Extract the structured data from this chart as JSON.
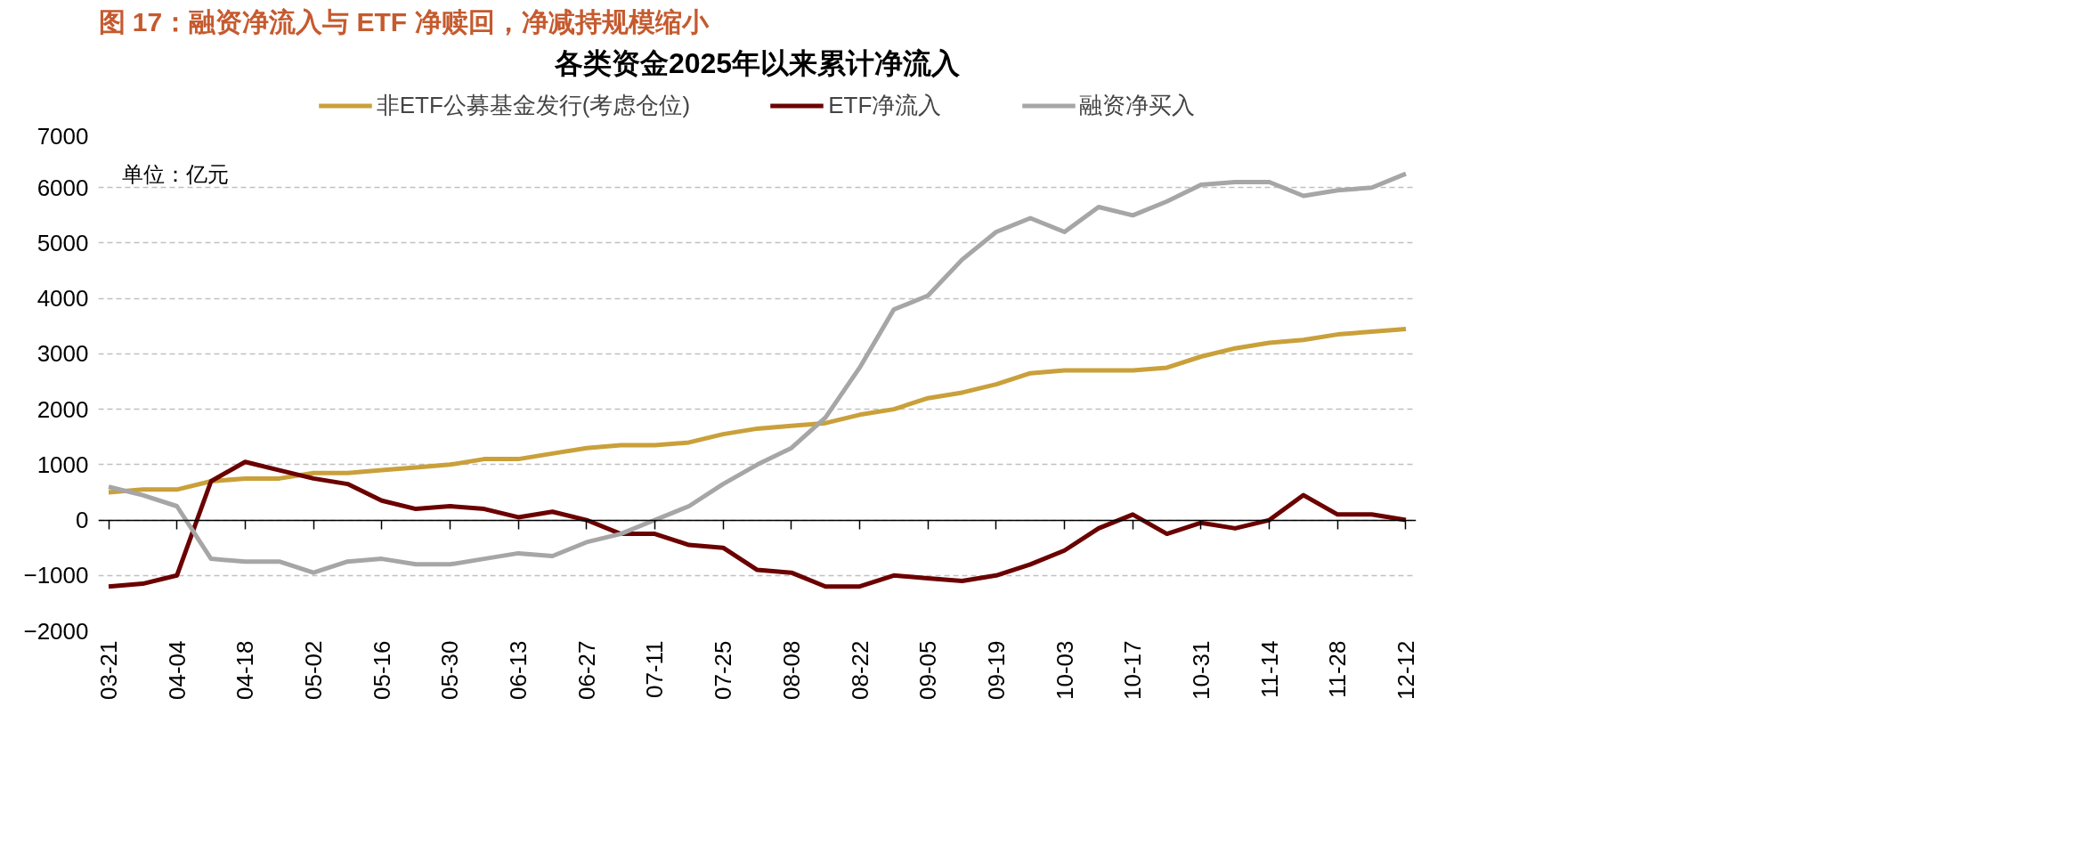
{
  "chart_data": {
    "type": "line",
    "title": "图 17：融资净流入与 ETF 净赎回，净减持规模缩小",
    "subtitle": "各类资金2025年以来累计净流入",
    "annotations": [
      "单位：亿元"
    ],
    "categories": [
      "03-21",
      null,
      "04-04",
      null,
      "04-18",
      null,
      "05-02",
      null,
      "05-16",
      null,
      "05-30",
      null,
      "06-13",
      null,
      "06-27",
      null,
      "07-11",
      null,
      "07-25",
      null,
      "08-08",
      null,
      "08-22",
      null,
      "09-05",
      null,
      "09-19",
      null,
      "10-03",
      null,
      "10-17",
      null,
      "10-31",
      null,
      "11-14",
      null,
      "11-28",
      null,
      "12-12"
    ],
    "series": [
      {
        "name": "非ETF公募基金发行(考虑仓位)",
        "color": "#c9a03a",
        "values": [
          500,
          550,
          550,
          700,
          750,
          750,
          850,
          850,
          900,
          950,
          1000,
          1100,
          1100,
          1200,
          1300,
          1350,
          1350,
          1400,
          1550,
          1650,
          1700,
          1750,
          1900,
          2000,
          2200,
          2300,
          2450,
          2650,
          2700,
          2700,
          2700,
          2750,
          2950,
          3100,
          3200,
          3250,
          3350,
          3400,
          3450
        ]
      },
      {
        "name": "ETF净流入",
        "color": "#6b0000",
        "values": [
          -1200,
          -1150,
          -1000,
          700,
          1050,
          900,
          750,
          650,
          350,
          200,
          250,
          200,
          50,
          150,
          0,
          -250,
          -250,
          -450,
          -500,
          -900,
          -950,
          -1200,
          -1200,
          -1000,
          -1050,
          -1100,
          -1000,
          -800,
          -550,
          -150,
          100,
          -250,
          -50,
          -150,
          0,
          450,
          100,
          100,
          0
        ]
      },
      {
        "name": "融资净买入",
        "color": "#a6a6a6",
        "values": [
          600,
          450,
          250,
          -700,
          -750,
          -750,
          -950,
          -750,
          -700,
          -800,
          -800,
          -700,
          -600,
          -650,
          -400,
          -250,
          0,
          250,
          650,
          1000,
          1300,
          1850,
          2750,
          3800,
          4050,
          4700,
          5200,
          5450,
          5200,
          5650,
          5500,
          5750,
          6050,
          6100,
          6100,
          5850,
          5950,
          6000,
          6250
        ]
      }
    ],
    "ylim": [
      -2000,
      7000
    ],
    "yticks": [
      -2000,
      -1000,
      0,
      1000,
      2000,
      3000,
      4000,
      5000,
      6000,
      7000
    ],
    "grid": "y",
    "legend": "top",
    "line_style": "solid",
    "marker": "none"
  }
}
